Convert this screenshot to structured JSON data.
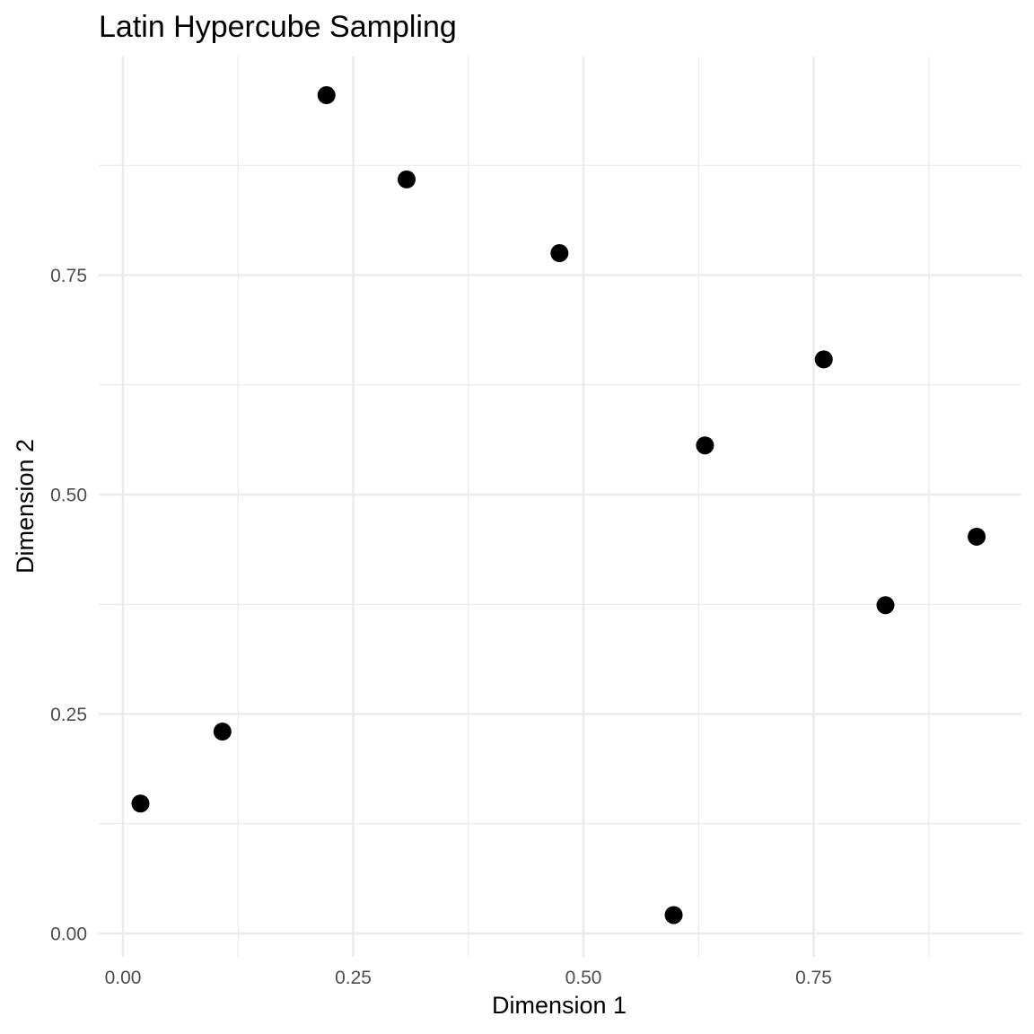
{
  "chart_data": {
    "type": "scatter",
    "title": "Latin Hypercube Sampling",
    "xlabel": "Dimension 1",
    "ylabel": "Dimension 2",
    "xlim": [
      0.0,
      1.0
    ],
    "ylim": [
      0.0,
      1.0
    ],
    "x_ticks": [
      0.0,
      0.25,
      0.5,
      0.75
    ],
    "x_tick_labels": [
      "0.00",
      "0.25",
      "0.50",
      "0.75"
    ],
    "y_ticks": [
      0.0,
      0.25,
      0.5,
      0.75
    ],
    "y_tick_labels": [
      "0.00",
      "0.25",
      "0.50",
      "0.75"
    ],
    "grid": true,
    "legend": "none",
    "point_color": "#000000",
    "points": [
      {
        "x": 0.019,
        "y": 0.148
      },
      {
        "x": 0.108,
        "y": 0.23
      },
      {
        "x": 0.221,
        "y": 0.955
      },
      {
        "x": 0.308,
        "y": 0.859
      },
      {
        "x": 0.474,
        "y": 0.775
      },
      {
        "x": 0.598,
        "y": 0.021
      },
      {
        "x": 0.632,
        "y": 0.556
      },
      {
        "x": 0.761,
        "y": 0.654
      },
      {
        "x": 0.828,
        "y": 0.374
      },
      {
        "x": 0.927,
        "y": 0.452
      }
    ]
  }
}
